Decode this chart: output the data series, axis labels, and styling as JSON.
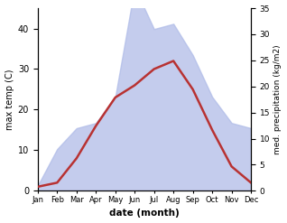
{
  "months": [
    "Jan",
    "Feb",
    "Mar",
    "Apr",
    "May",
    "Jun",
    "Jul",
    "Aug",
    "Sep",
    "Oct",
    "Nov",
    "Dec"
  ],
  "temperature": [
    1,
    2,
    8,
    16,
    23,
    26,
    30,
    32,
    25,
    15,
    6,
    2
  ],
  "precipitation": [
    1,
    8,
    12,
    13,
    18,
    39,
    31,
    32,
    26,
    18,
    13,
    12
  ],
  "temp_ylim": [
    0,
    45
  ],
  "precip_ylim": [
    0,
    35
  ],
  "temp_yticks": [
    0,
    10,
    20,
    30,
    40
  ],
  "precip_yticks": [
    0,
    5,
    10,
    15,
    20,
    25,
    30,
    35
  ],
  "fill_color": "#b0bce8",
  "fill_alpha": 0.75,
  "line_color": "#b83232",
  "line_width": 1.8,
  "xlabel": "date (month)",
  "ylabel_left": "max temp (C)",
  "ylabel_right": "med. precipitation (kg/m2)",
  "bg_color": "#ffffff"
}
